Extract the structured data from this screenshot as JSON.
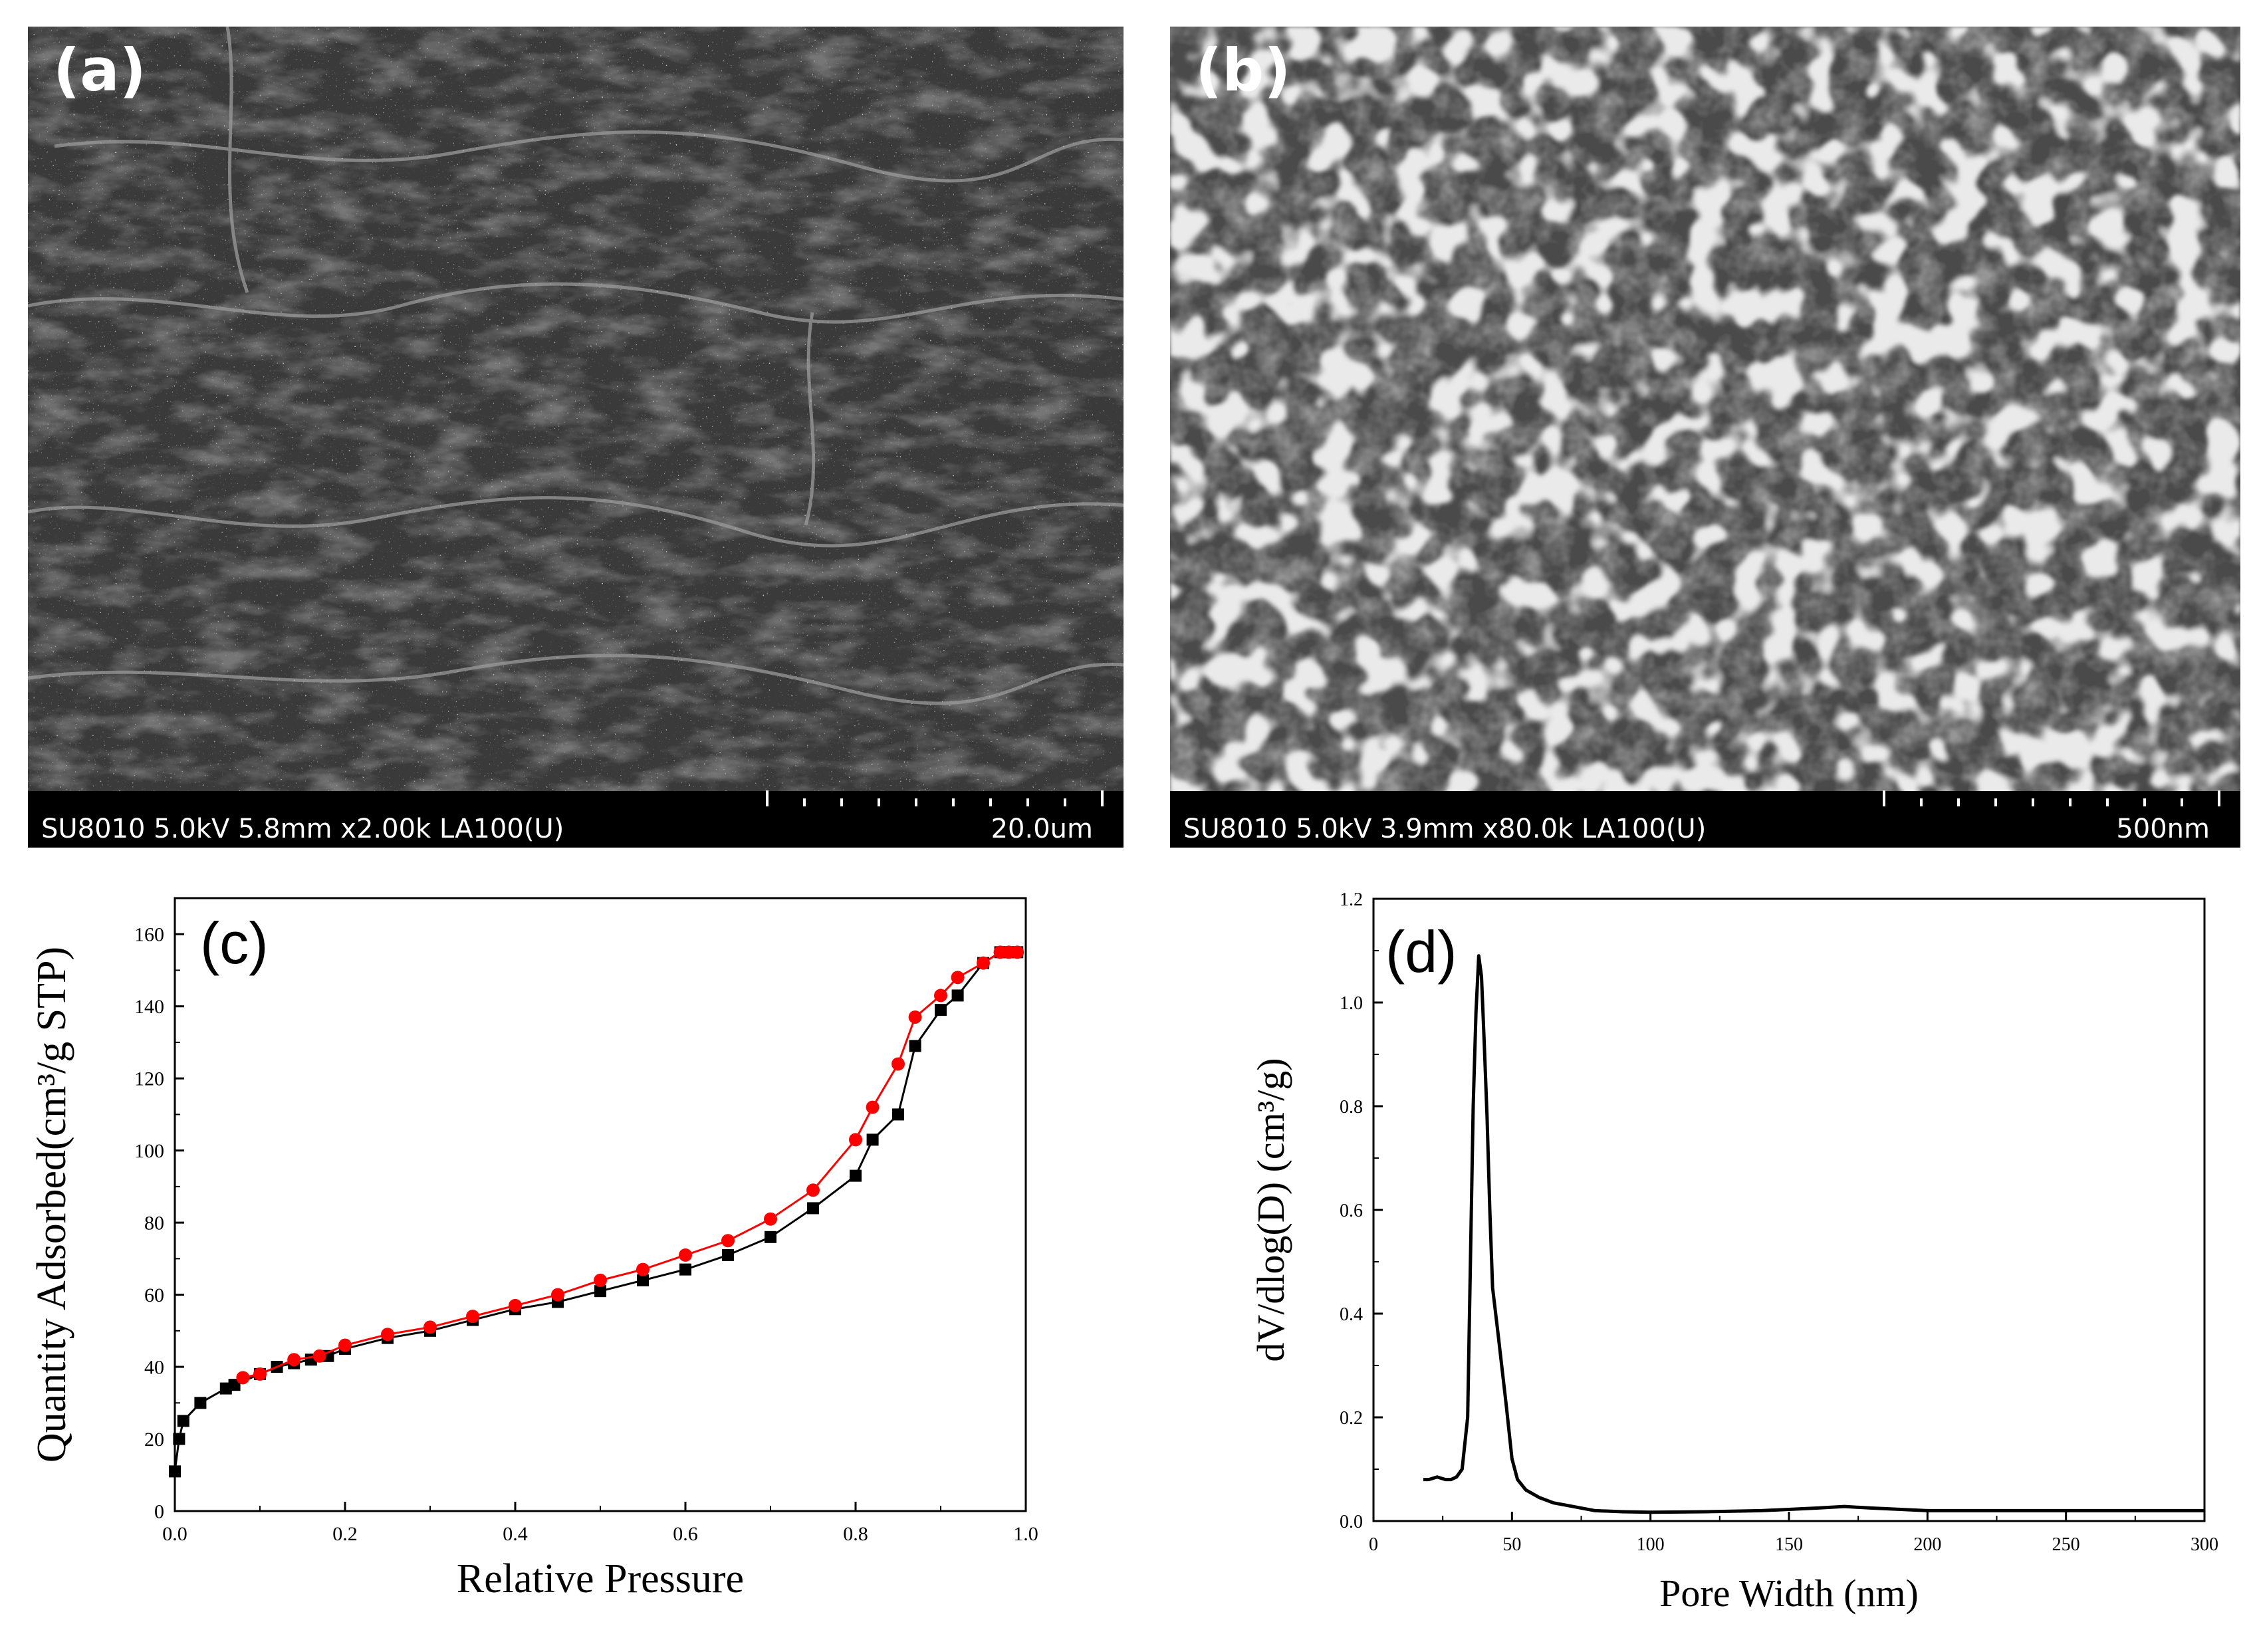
{
  "panels": {
    "a": {
      "label": "(a)",
      "info": "SU8010 5.0kV 5.8mm x2.00k LA100(U)",
      "scale": "20.0um"
    },
    "b": {
      "label": "(b)",
      "info": "SU8010 5.0kV 3.9mm x80.0k LA100(U)",
      "scale": "500nm"
    }
  },
  "colors": {
    "adsorption": "#000000",
    "desorption": "#ff0000",
    "sem_bg": "#2b2b2b"
  },
  "chart_data": [
    {
      "id": "c",
      "type": "line",
      "panel_label": "(c)",
      "xlabel": "Relative Pressure",
      "ylabel": "Quantity Adsorbed(cm³/g STP)",
      "xlim": [
        0.0,
        1.0
      ],
      "ylim": [
        0,
        170
      ],
      "xticks": [
        "0.0",
        "0.2",
        "0.4",
        "0.6",
        "0.8",
        "1.0"
      ],
      "xtick_values": [
        0.0,
        0.2,
        0.4,
        0.6,
        0.8,
        1.0
      ],
      "yticks": [
        "0",
        "20",
        "40",
        "60",
        "80",
        "100",
        "120",
        "140",
        "160"
      ],
      "ytick_values": [
        0,
        20,
        40,
        60,
        80,
        100,
        120,
        140,
        160
      ],
      "series": [
        {
          "color": "#000000",
          "marker": "square",
          "x": [
            0.0,
            0.005,
            0.01,
            0.03,
            0.06,
            0.07,
            0.1,
            0.12,
            0.14,
            0.16,
            0.18,
            0.2,
            0.25,
            0.3,
            0.35,
            0.4,
            0.45,
            0.5,
            0.55,
            0.6,
            0.65,
            0.7,
            0.75,
            0.8,
            0.82,
            0.85,
            0.87,
            0.9,
            0.92,
            0.95,
            0.97,
            0.98,
            0.99
          ],
          "y": [
            11,
            20,
            25,
            30,
            34,
            35,
            38,
            40,
            41,
            42,
            43,
            45,
            48,
            50,
            53,
            56,
            58,
            61,
            64,
            67,
            71,
            76,
            84,
            93,
            103,
            110,
            129,
            139,
            143,
            152,
            155,
            155,
            155
          ]
        },
        {
          "color": "#ff0000",
          "marker": "circle",
          "x": [
            0.08,
            0.1,
            0.14,
            0.17,
            0.2,
            0.25,
            0.3,
            0.35,
            0.4,
            0.45,
            0.5,
            0.55,
            0.6,
            0.65,
            0.7,
            0.75,
            0.8,
            0.82,
            0.85,
            0.87,
            0.9,
            0.92,
            0.95,
            0.97,
            0.98,
            0.99
          ],
          "y": [
            37,
            38,
            42,
            43,
            46,
            49,
            51,
            54,
            57,
            60,
            64,
            67,
            71,
            75,
            81,
            89,
            103,
            112,
            124,
            137,
            143,
            148,
            152,
            155,
            155,
            155
          ]
        }
      ]
    },
    {
      "id": "d",
      "type": "line",
      "panel_label": "(d)",
      "xlabel": "Pore Width (nm)",
      "ylabel": "dV/dlog(D) (cm³/g)",
      "xlim": [
        0,
        300
      ],
      "ylim": [
        0.0,
        1.2
      ],
      "xticks": [
        "0",
        "50",
        "100",
        "150",
        "200",
        "250",
        "300"
      ],
      "xtick_values": [
        0,
        50,
        100,
        150,
        200,
        250,
        300
      ],
      "yticks": [
        "0.0",
        "0.2",
        "0.4",
        "0.6",
        "0.8",
        "1.0",
        "1.2"
      ],
      "ytick_values": [
        0.0,
        0.2,
        0.4,
        0.6,
        0.8,
        1.0,
        1.2
      ],
      "series": [
        {
          "color": "#000000",
          "x": [
            18,
            20,
            23,
            26,
            28,
            30,
            32,
            34,
            35,
            36,
            37,
            38,
            39,
            40,
            41,
            42,
            43,
            45,
            48,
            50,
            52,
            55,
            60,
            65,
            70,
            80,
            90,
            100,
            120,
            140,
            160,
            170,
            180,
            200,
            220,
            250,
            280,
            300
          ],
          "y": [
            0.08,
            0.08,
            0.085,
            0.08,
            0.08,
            0.085,
            0.1,
            0.2,
            0.5,
            0.8,
            0.98,
            1.09,
            1.05,
            0.92,
            0.78,
            0.6,
            0.45,
            0.36,
            0.22,
            0.12,
            0.08,
            0.06,
            0.045,
            0.035,
            0.03,
            0.02,
            0.018,
            0.017,
            0.018,
            0.02,
            0.025,
            0.028,
            0.025,
            0.02,
            0.02,
            0.02,
            0.02,
            0.02
          ]
        }
      ]
    }
  ]
}
